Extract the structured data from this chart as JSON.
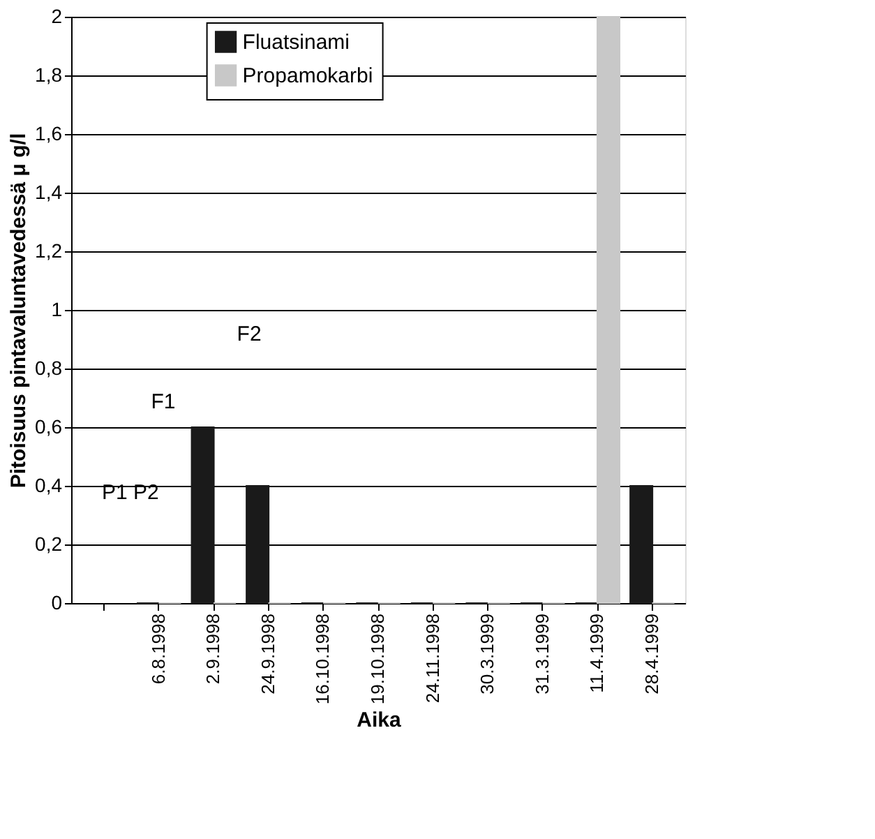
{
  "chart_data": {
    "type": "bar",
    "xlabel": "Aika",
    "ylabel": "Pitoisuus pintavaluntavedessä μ g/l",
    "categories": [
      null,
      "6.8.1998",
      "2.9.1998",
      "24.9.1998",
      "16.10.1998",
      "19.10.1998",
      "24.11.1998",
      "30.3.1999",
      "31.3.1999",
      "11.4.1999",
      "28.4.1999"
    ],
    "series": [
      {
        "name": "Fluatsinami",
        "color": "#1a1a1a",
        "values": [
          null,
          0,
          0.6,
          0.4,
          0,
          0,
          0,
          0,
          0,
          0,
          0.4
        ]
      },
      {
        "name": "Propamokarbi",
        "color": "#c8c8c8",
        "values": [
          null,
          0,
          0,
          0,
          0,
          0,
          0,
          0,
          0,
          2.0,
          0
        ]
      }
    ],
    "ylim": [
      0,
      2
    ],
    "yticks": [
      0,
      {
        "value": 0.2,
        "label": "0,2"
      },
      {
        "value": 0.4,
        "label": "0,4"
      },
      {
        "value": 0.6,
        "label": "0,6"
      },
      {
        "value": 0.8,
        "label": "0,8"
      },
      1,
      {
        "value": 1.2,
        "label": "1,2"
      },
      {
        "value": 1.4,
        "label": "1,4"
      },
      {
        "value": 1.6,
        "label": "1,6"
      },
      {
        "value": 1.8,
        "label": "1,8"
      },
      2
    ],
    "grid": "y",
    "legend": "top",
    "annotations": [
      "P1 P2",
      "F1",
      "F2"
    ]
  }
}
